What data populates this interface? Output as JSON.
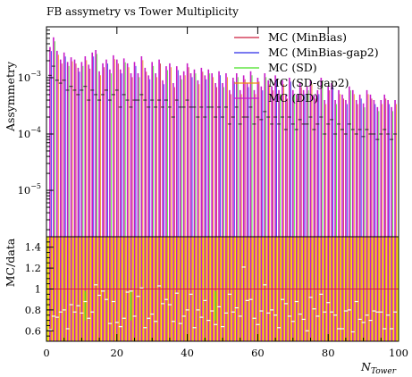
{
  "chart_data": [
    {
      "type": "bar",
      "title": "FB assymetry vs Tower Multiplicity",
      "ylabel": "Assymmetry",
      "xlabel": "",
      "yscale": "log",
      "xlim": [
        0,
        100
      ],
      "ylim": [
        1.5e-06,
        0.008
      ],
      "yticks": [
        {
          "value": 1e-05,
          "label": "10",
          "exp": "−5"
        },
        {
          "value": 0.0001,
          "label": "10",
          "exp": "−4"
        },
        {
          "value": 0.001,
          "label": "10",
          "exp": "−3"
        }
      ],
      "legend_position": "top-right",
      "series": [
        {
          "name": "MC (MinBias)",
          "color": "#cc1f3d"
        },
        {
          "name": "MC (MinBias-gap2)",
          "color": "#2a2ae8"
        },
        {
          "name": "MC (SD)",
          "color": "#44e022"
        },
        {
          "name": "MC (SD-gap2)",
          "color": "#f08a10"
        },
        {
          "name": "MC (DD)",
          "color": "#c81cc8"
        }
      ],
      "fill_color": "#c81cc8",
      "x": [
        1,
        2,
        3,
        4,
        5,
        6,
        7,
        8,
        9,
        10,
        11,
        12,
        13,
        14,
        15,
        16,
        17,
        18,
        19,
        20,
        21,
        22,
        23,
        24,
        25,
        26,
        27,
        28,
        29,
        30,
        31,
        32,
        33,
        34,
        35,
        36,
        37,
        38,
        39,
        40,
        41,
        42,
        43,
        44,
        45,
        46,
        47,
        48,
        49,
        50,
        51,
        52,
        53,
        54,
        55,
        56,
        57,
        58,
        59,
        60,
        61,
        62,
        63,
        64,
        65,
        66,
        67,
        68,
        69,
        70,
        71,
        72,
        73,
        74,
        75,
        76,
        77,
        78,
        79,
        80,
        81,
        82,
        83,
        84,
        85,
        86,
        87,
        88,
        89,
        90,
        91,
        92,
        93,
        94,
        95,
        96,
        97,
        98,
        99
      ],
      "envelope": [
        0.0035,
        0.0052,
        0.003,
        0.0021,
        0.0028,
        0.0019,
        0.0023,
        0.0021,
        0.0015,
        0.0019,
        0.0024,
        0.0017,
        0.0028,
        0.0031,
        0.0013,
        0.0018,
        0.0021,
        0.0014,
        0.0025,
        0.0021,
        0.0014,
        0.0022,
        0.0018,
        0.0012,
        0.0019,
        0.0012,
        0.0024,
        0.0015,
        0.0011,
        0.0019,
        0.0012,
        0.0021,
        0.0009,
        0.0016,
        0.0018,
        0.0008,
        0.0016,
        0.0011,
        0.0013,
        0.0018,
        0.0012,
        0.0014,
        0.0009,
        0.0015,
        0.0011,
        0.0014,
        0.0012,
        0.0008,
        0.0013,
        0.0008,
        0.0012,
        0.0006,
        0.001,
        0.0012,
        0.0006,
        0.0011,
        0.0008,
        0.0013,
        0.0006,
        0.001,
        0.0007,
        0.0012,
        0.0009,
        0.0007,
        0.0011,
        0.0006,
        0.0009,
        0.0005,
        0.001,
        0.0006,
        0.0005,
        0.0008,
        0.0006,
        0.0007,
        0.0009,
        0.0005,
        0.0006,
        0.001,
        0.0004,
        0.0007,
        0.0008,
        0.0004,
        0.0006,
        0.0005,
        0.0004,
        0.0007,
        0.0006,
        0.0004,
        0.0005,
        0.00035,
        0.0006,
        0.0005,
        0.0004,
        0.0003,
        0.0004,
        0.0005,
        0.0004,
        0.0003,
        0.0004
      ],
      "central": [
        0.0011,
        0.0016,
        0.0009,
        0.0008,
        0.0009,
        0.0006,
        0.0007,
        0.0006,
        0.0005,
        0.0006,
        0.0007,
        0.0004,
        0.0006,
        0.0005,
        0.0004,
        0.0005,
        0.0006,
        0.0004,
        0.0005,
        0.0006,
        0.0003,
        0.0005,
        0.0004,
        0.0003,
        0.0004,
        0.0004,
        0.0005,
        0.0004,
        0.0003,
        0.0004,
        0.0003,
        0.0004,
        0.0003,
        0.0004,
        0.0003,
        0.0002,
        0.0004,
        0.0003,
        0.0003,
        0.0004,
        0.0003,
        0.0003,
        0.0002,
        0.0003,
        0.0002,
        0.0003,
        0.0003,
        0.0002,
        0.0003,
        0.0002,
        0.0003,
        0.00015,
        0.0002,
        0.0003,
        0.00015,
        0.0002,
        0.0002,
        0.0003,
        0.00015,
        0.0002,
        0.00018,
        0.00025,
        0.0002,
        0.00015,
        0.0002,
        0.00015,
        0.0002,
        0.00012,
        0.0002,
        0.00015,
        0.00012,
        0.00018,
        0.00015,
        0.00015,
        0.0002,
        0.00012,
        0.00015,
        0.0002,
        0.0001,
        0.00015,
        0.00018,
        0.0001,
        0.00015,
        0.00012,
        0.0001,
        0.00015,
        0.00012,
        0.0001,
        0.00012,
        9e-05,
        0.00012,
        0.0001,
        0.0001,
        8e-05,
        0.0001,
        0.00012,
        0.0001,
        8e-05,
        0.0001
      ],
      "accent_x": [
        11,
        24,
        48
      ]
    },
    {
      "type": "bar",
      "title": "",
      "ylabel": "MC/data",
      "xlabel": "N",
      "xlabel_sub": "Tower",
      "xlim": [
        0,
        100
      ],
      "ylim": [
        0.5,
        1.5
      ],
      "xticks": [
        0,
        20,
        40,
        60,
        80,
        100
      ],
      "xtick_labels": [
        "0",
        "20",
        "40",
        "60",
        "80",
        "100"
      ],
      "yticks": [
        0.6,
        0.8,
        1,
        1.2,
        1.4
      ],
      "ytick_labels": [
        "0.6",
        "0.8",
        "1",
        "1.2",
        "1.4"
      ],
      "reference_line": 1,
      "band_color": "#f5e61a",
      "ratio": [
        0.61,
        0.74,
        0.73,
        0.78,
        0.8,
        0.62,
        0.85,
        0.78,
        0.84,
        0.77,
        0.88,
        0.72,
        0.78,
        1.04,
        0.94,
        0.98,
        0.9,
        0.67,
        0.88,
        0.68,
        0.64,
        0.72,
        0.97,
        0.98,
        0.74,
        0.93,
        1.01,
        0.63,
        0.72,
        0.76,
        0.69,
        1.03,
        0.86,
        0.9,
        0.85,
        0.69,
        0.96,
        0.67,
        0.74,
        0.8,
        0.95,
        0.63,
        0.8,
        0.73,
        0.89,
        0.7,
        0.79,
        0.66,
        0.83,
        0.64,
        0.77,
        0.95,
        0.78,
        0.82,
        0.74,
        1.21,
        0.89,
        0.9,
        0.72,
        0.66,
        0.79,
        1.04,
        0.77,
        0.8,
        0.75,
        0.63,
        0.9,
        0.86,
        0.74,
        0.69,
        0.88,
        0.76,
        0.71,
        0.6,
        0.92,
        0.81,
        0.74,
        0.95,
        0.78,
        0.87,
        0.78,
        0.75,
        0.62,
        0.62,
        0.79,
        0.8,
        0.59,
        0.88,
        0.71,
        0.68,
        0.75,
        0.7,
        0.79,
        0.78,
        0.78,
        0.62,
        0.75,
        0.62,
        0.78
      ]
    }
  ]
}
